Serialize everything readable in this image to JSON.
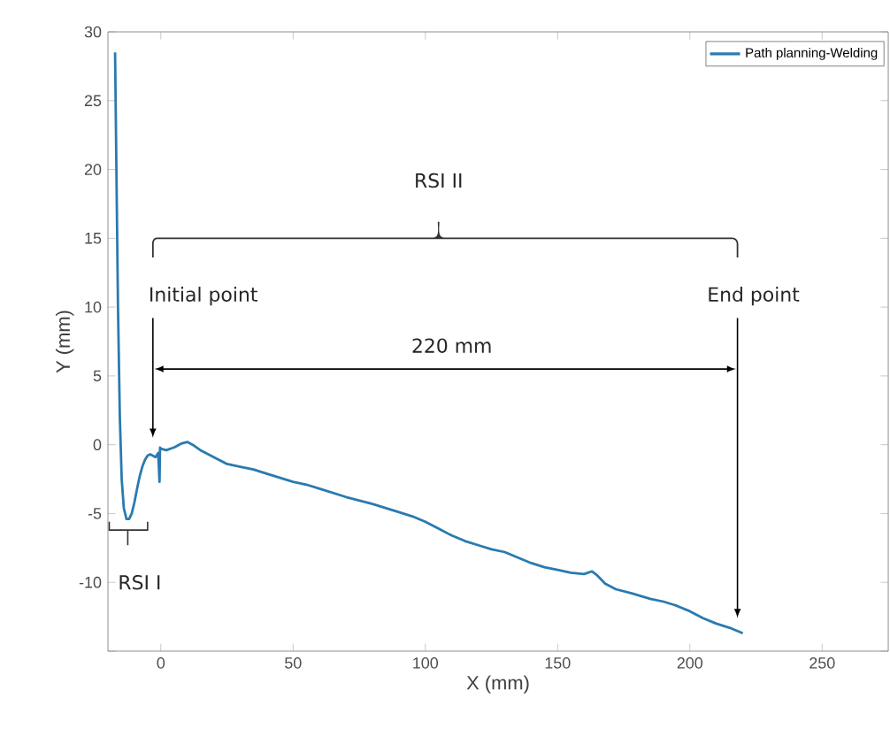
{
  "chart_data": {
    "type": "line",
    "xlabel": "X (mm)",
    "ylabel": "Y (mm)",
    "xlim": [
      -20,
      275
    ],
    "ylim": [
      -15,
      30
    ],
    "xticks": [
      0,
      50,
      100,
      150,
      200,
      250
    ],
    "yticks": [
      {
        "value": -15,
        "label": null
      },
      -10,
      -5,
      0,
      5,
      10,
      15,
      20,
      25,
      30
    ],
    "legend": "top right",
    "grid": false,
    "series": [
      {
        "name": "Path planning-Welding",
        "color": "#2a7ab0",
        "x": [
          -17.3,
          -16.8,
          -16.2,
          -15.5,
          -14.8,
          -14,
          -13,
          -12,
          -11,
          -10,
          -9,
          -8,
          -7,
          -6,
          -5,
          -4,
          -3,
          -2,
          -1,
          -0.5,
          -0.3,
          0,
          0.3,
          2,
          5,
          8,
          10,
          12,
          15,
          20,
          25,
          30,
          35,
          40,
          50,
          55,
          60,
          70,
          80,
          90,
          95,
          100,
          105,
          110,
          115,
          120,
          125,
          130,
          135,
          140,
          145,
          150,
          155,
          160,
          163,
          165,
          168,
          172,
          178,
          185,
          190,
          195,
          200,
          205,
          210,
          215,
          220
        ],
        "values": [
          28.5,
          20,
          10,
          2,
          -2.5,
          -4.6,
          -5.4,
          -5.4,
          -5,
          -4.2,
          -3.2,
          -2.3,
          -1.6,
          -1.1,
          -0.8,
          -0.7,
          -0.8,
          -0.9,
          -0.6,
          -2.7,
          -0.2,
          -0.3,
          -0.3,
          -0.4,
          -0.2,
          0.1,
          0.2,
          0,
          -0.4,
          -0.9,
          -1.4,
          -1.6,
          -1.8,
          -2.1,
          -2.7,
          -2.9,
          -3.2,
          -3.8,
          -4.3,
          -4.9,
          -5.2,
          -5.6,
          -6.1,
          -6.6,
          -7.0,
          -7.3,
          -7.6,
          -7.8,
          -8.2,
          -8.6,
          -8.9,
          -9.1,
          -9.3,
          -9.4,
          -9.2,
          -9.5,
          -10.1,
          -10.5,
          -10.8,
          -11.2,
          -11.4,
          -11.7,
          -12.1,
          -12.6,
          -13.0,
          -13.3,
          -13.7
        ]
      }
    ],
    "annotations": [
      "RSI II",
      "Initial point",
      "End point",
      "220 mm",
      "RSI I"
    ]
  }
}
